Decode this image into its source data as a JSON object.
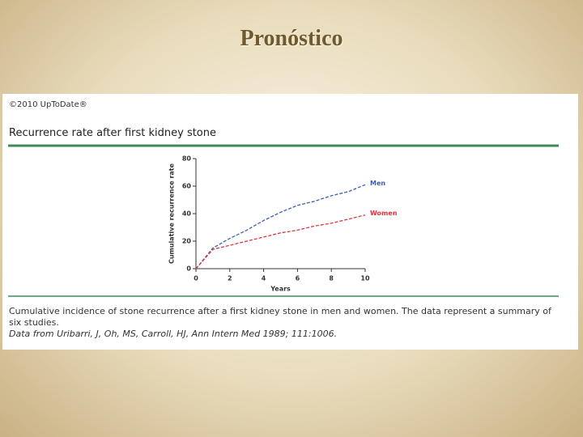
{
  "slide_title": "Pronóstico",
  "panel": {
    "copyright": "©2010 UpToDate®",
    "heading": "Recurrence rate after first kidney stone",
    "caption": "Cumulative incidence of stone recurrence after a first kidney stone in men and women. The data represent a summary of six studies.",
    "source": "Data from Uribarri, J, Oh, MS, Carroll, HJ, Ann Intern Med 1989; 111:1006."
  },
  "chart_data": {
    "type": "line",
    "x": [
      0,
      1,
      2,
      3,
      4,
      5,
      6,
      7,
      8,
      9,
      10
    ],
    "series": [
      {
        "name": "Men",
        "color": "#3a5fb8",
        "values": [
          0,
          15,
          22,
          28,
          35,
          41,
          46,
          49,
          53,
          56,
          61
        ]
      },
      {
        "name": "Women",
        "color": "#d9363e",
        "values": [
          0,
          14,
          17,
          20,
          23,
          26,
          28,
          31,
          33,
          36,
          39
        ]
      }
    ],
    "xlim": [
      0,
      10
    ],
    "ylim": [
      0,
      80
    ],
    "xticks": [
      0,
      2,
      4,
      6,
      8,
      10
    ],
    "yticks": [
      0,
      20,
      40,
      60,
      80
    ],
    "xlabel": "Years",
    "ylabel": "Cumulative recurrence rate"
  }
}
